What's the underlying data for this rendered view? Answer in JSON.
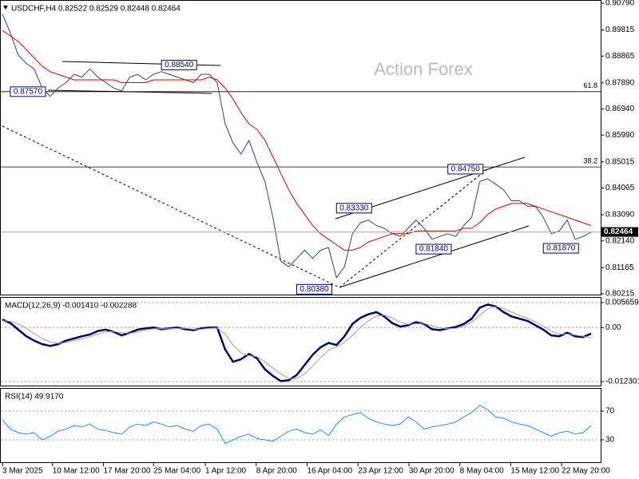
{
  "chart_data": [
    {
      "type": "line",
      "title": "USDCHF,H4 0.82522 0.82529 0.82448 0.82464",
      "watermark": "Action Forex",
      "xlim": [
        0,
        74
      ],
      "ylim": [
        0.80215,
        0.9079
      ],
      "yticks": [
        {
          "value": 0.9079,
          "label": "0.90790"
        },
        {
          "value": 0.89815,
          "label": "0.89815"
        },
        {
          "value": 0.88865,
          "label": "0.88865"
        },
        {
          "value": 0.8789,
          "label": "0.87890"
        },
        {
          "value": 0.8694,
          "label": "0.86940"
        },
        {
          "value": 0.8599,
          "label": "0.85990"
        },
        {
          "value": 0.85015,
          "label": "0.85015"
        },
        {
          "value": 0.84065,
          "label": "0.84065"
        },
        {
          "value": 0.8309,
          "label": "0.83090"
        },
        {
          "value": 0.8214,
          "label": "0.82140"
        },
        {
          "value": 0.81165,
          "label": "0.81165"
        },
        {
          "value": 0.80215,
          "label": "0.80215"
        }
      ],
      "last_price": 0.82464,
      "hlines": [
        {
          "value": 0.8757,
          "label": "61.8"
        },
        {
          "value": 0.8483,
          "label": "38.2"
        }
      ],
      "annotations": [
        {
          "x": 1,
          "value": 0.8757,
          "label": "0.87570"
        },
        {
          "x": 20,
          "value": 0.8854,
          "label": "0.88540"
        },
        {
          "x": 42,
          "value": 0.8333,
          "label": "0.83330"
        },
        {
          "x": 56,
          "value": 0.8475,
          "label": "0.84750"
        },
        {
          "x": 52,
          "value": 0.8184,
          "label": "0.81840"
        },
        {
          "x": 68,
          "value": 0.8187,
          "label": "0.81870"
        },
        {
          "x": 37,
          "value": 0.8038,
          "label": "0.80380"
        }
      ],
      "series": [
        {
          "color": "#2f4f4f",
          "values": [
            0.904,
            0.897,
            0.889,
            0.886,
            0.884,
            0.877,
            0.874,
            0.877,
            0.879,
            0.882,
            0.881,
            0.884,
            0.881,
            0.879,
            0.877,
            0.876,
            0.881,
            0.882,
            0.88,
            0.882,
            0.883,
            0.882,
            0.881,
            0.88,
            0.879,
            0.882,
            0.882,
            0.879,
            0.864,
            0.857,
            0.853,
            0.858,
            0.85,
            0.843,
            0.83,
            0.814,
            0.812,
            0.815,
            0.818,
            0.815,
            0.818,
            0.819,
            0.808,
            0.812,
            0.824,
            0.828,
            0.829,
            0.827,
            0.826,
            0.824,
            0.823,
            0.826,
            0.829,
            0.826,
            0.822,
            0.823,
            0.824,
            0.823,
            0.827,
            0.83,
            0.843,
            0.844,
            0.842,
            0.84,
            0.836,
            0.836,
            0.834,
            0.834,
            0.83,
            0.824,
            0.825,
            0.829,
            0.822,
            0.823,
            0.8246
          ]
        },
        {
          "color": "#e00000",
          "values": [
            0.898,
            0.896,
            0.894,
            0.891,
            0.888,
            0.885,
            0.883,
            0.882,
            0.881,
            0.88,
            0.88,
            0.88,
            0.88,
            0.88,
            0.88,
            0.879,
            0.879,
            0.879,
            0.879,
            0.88,
            0.88,
            0.88,
            0.88,
            0.88,
            0.88,
            0.88,
            0.881,
            0.88,
            0.877,
            0.873,
            0.868,
            0.864,
            0.862,
            0.858,
            0.852,
            0.846,
            0.84,
            0.835,
            0.831,
            0.827,
            0.824,
            0.822,
            0.82,
            0.818,
            0.818,
            0.819,
            0.821,
            0.822,
            0.823,
            0.824,
            0.824,
            0.824,
            0.825,
            0.825,
            0.825,
            0.825,
            0.825,
            0.825,
            0.826,
            0.826,
            0.828,
            0.831,
            0.833,
            0.834,
            0.835,
            0.835,
            0.835,
            0.834,
            0.833,
            0.832,
            0.831,
            0.83,
            0.829,
            0.828,
            0.827
          ]
        }
      ]
    },
    {
      "type": "line",
      "title": "MACD(12,26,9) -0.001410 -0.002288",
      "xlim": [
        0,
        74
      ],
      "ylim": [
        -0.012301,
        0.005659
      ],
      "yticks": [
        0.005659,
        {
          "value": 0,
          "label": "0.00"
        },
        -0.012301
      ],
      "grid": true,
      "series": [
        {
          "color": "#000080",
          "values": [
            0.0018,
            0.001,
            -0.0005,
            -0.002,
            -0.003,
            -0.0038,
            -0.0042,
            -0.0038,
            -0.003,
            -0.0025,
            -0.002,
            -0.0016,
            -0.0008,
            -0.0005,
            -0.001,
            -0.0018,
            -0.0012,
            -0.0005,
            -0.0002,
            0,
            -0.0004,
            -0.0002,
            0,
            -0.0004,
            -0.0006,
            -0.0002,
            0,
            0,
            -0.005,
            -0.0078,
            -0.0072,
            -0.006,
            -0.007,
            -0.0095,
            -0.011,
            -0.0122,
            -0.012,
            -0.0108,
            -0.0085,
            -0.0062,
            -0.0045,
            -0.0035,
            -0.004,
            -0.002,
            0.0008,
            0.0022,
            0.003,
            0.0035,
            0.0025,
            0.001,
            0.0002,
            0.0005,
            0.0012,
            0.0008,
            -0.0004,
            -0.0006,
            -0.0002,
            0.0001,
            0.0008,
            0.002,
            0.0045,
            0.0052,
            0.0048,
            0.0035,
            0.0025,
            0.002,
            0.0015,
            0.0005,
            -0.0005,
            -0.0018,
            -0.002,
            -0.0012,
            -0.002,
            -0.0022,
            -0.0014
          ]
        },
        {
          "color": "#a0a0a0",
          "values": [
            0.0015,
            0.0014,
            0.0008,
            -0.0002,
            -0.0014,
            -0.0025,
            -0.0033,
            -0.0036,
            -0.0034,
            -0.003,
            -0.0026,
            -0.0021,
            -0.0015,
            -0.001,
            -0.0009,
            -0.0012,
            -0.0013,
            -0.001,
            -0.0006,
            -0.0003,
            -0.0003,
            -0.0003,
            -0.0002,
            -0.0002,
            -0.0004,
            -0.0004,
            -0.0002,
            -0.0001,
            -0.0015,
            -0.004,
            -0.0058,
            -0.0064,
            -0.0066,
            -0.0078,
            -0.0092,
            -0.0106,
            -0.0116,
            -0.0116,
            -0.0105,
            -0.0088,
            -0.0068,
            -0.0052,
            -0.0044,
            -0.0034,
            -0.0018,
            0,
            0.0015,
            0.0026,
            0.0028,
            0.0022,
            0.0012,
            0.0007,
            0.0008,
            0.0009,
            0.0004,
            -0.0001,
            -0.0003,
            -0.0002,
            0.0003,
            0.0012,
            0.0028,
            0.0042,
            0.0048,
            0.0043,
            0.0035,
            0.0027,
            0.0021,
            0.0013,
            0.0003,
            -0.0008,
            -0.0015,
            -0.0015,
            -0.0017,
            -0.002,
            -0.0023
          ]
        }
      ]
    },
    {
      "type": "line",
      "title": "RSI(14) 49.9170",
      "xlim": [
        0,
        74
      ],
      "ylim": [
        0,
        100
      ],
      "yticks": [
        70,
        30
      ],
      "grid": true,
      "xticks": [
        {
          "value": 0,
          "label": "3 Mar 2025"
        },
        {
          "value": 6.3,
          "label": "10 Mar 12:00"
        },
        {
          "value": 12.7,
          "label": "17 Mar 20:00"
        },
        {
          "value": 19,
          "label": "25 Mar 04:00"
        },
        {
          "value": 25.5,
          "label": "1 Apr 12:00"
        },
        {
          "value": 31.9,
          "label": "8 Apr 20:00"
        },
        {
          "value": 38.3,
          "label": "16 Apr 04:00"
        },
        {
          "value": 44.7,
          "label": "23 Apr 12:00"
        },
        {
          "value": 51.1,
          "label": "30 Apr 20:00"
        },
        {
          "value": 57.5,
          "label": "8 May 04:00"
        },
        {
          "value": 63.9,
          "label": "15 May 12:00"
        },
        {
          "value": 70.3,
          "label": "22 May 20:00"
        }
      ],
      "series": [
        {
          "color": "#1e90ff",
          "values": [
            58,
            45,
            40,
            38,
            40,
            30,
            35,
            42,
            45,
            50,
            48,
            52,
            45,
            43,
            40,
            38,
            48,
            52,
            50,
            55,
            52,
            48,
            50,
            45,
            42,
            50,
            52,
            45,
            25,
            30,
            35,
            38,
            32,
            30,
            28,
            35,
            42,
            45,
            40,
            38,
            44,
            36,
            52,
            62,
            65,
            68,
            60,
            55,
            52,
            50,
            52,
            62,
            55,
            45,
            48,
            50,
            52,
            55,
            62,
            68,
            78,
            72,
            62,
            60,
            55,
            52,
            50,
            45,
            40,
            35,
            40,
            42,
            38,
            40,
            50
          ]
        }
      ]
    }
  ]
}
